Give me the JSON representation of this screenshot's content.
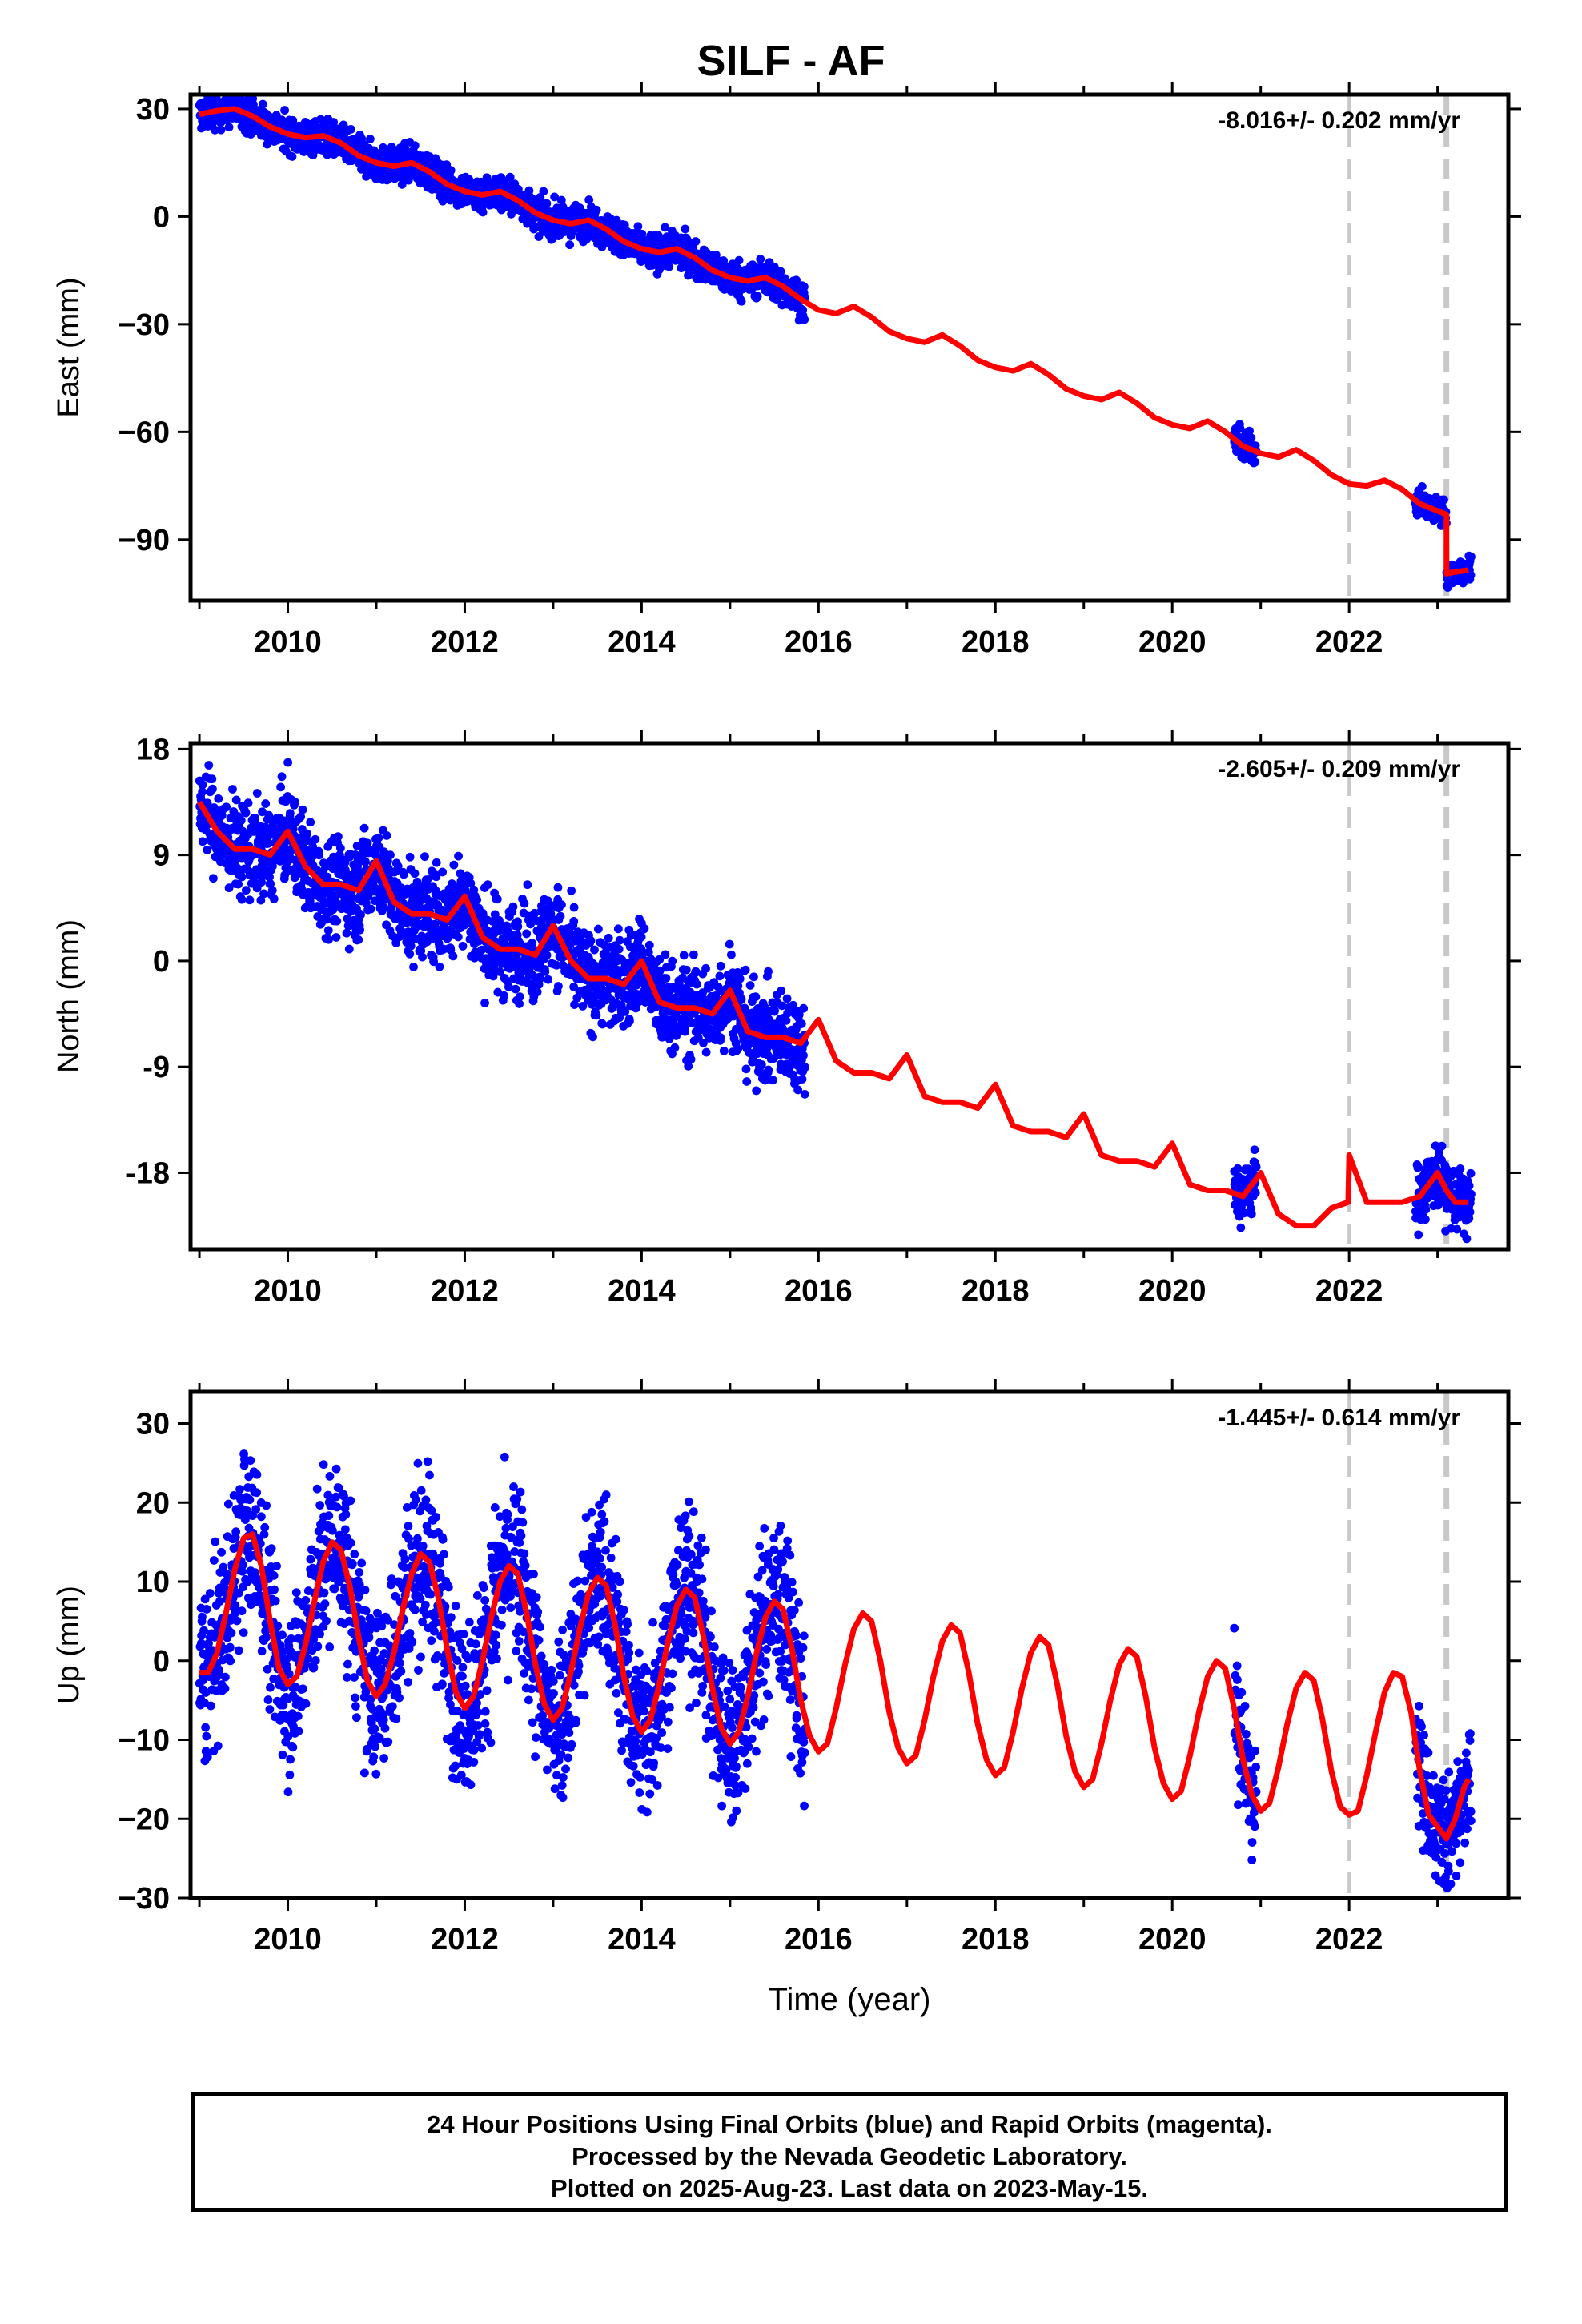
{
  "title": "SILF - AF",
  "colors": {
    "data": "#0000ff",
    "model": "#ff0000",
    "marker": "#c8c8c8",
    "frame": "#000000"
  },
  "footer": {
    "line1": "24 Hour Positions Using Final Orbits (blue) and Rapid Orbits (magenta).",
    "line2": "Processed by the Nevada Geodetic Laboratory.",
    "line3": "Plotted on 2025-Aug-23. Last data on 2023-May-15."
  },
  "chart_data": [
    {
      "type": "scatter",
      "ylabel": "East (mm)",
      "xlabel": "",
      "rate_label": "-8.016+/- 0.202 mm/yr",
      "xlim": [
        2008.9,
        2023.8
      ],
      "ylim": [
        -107,
        34
      ],
      "xticks": [
        2010,
        2012,
        2014,
        2016,
        2018,
        2020,
        2022
      ],
      "yticks": [
        -90,
        -60,
        -30,
        0,
        30
      ],
      "ytick_labels": [
        "−90",
        "−60",
        "−30",
        "0",
        "30"
      ],
      "equipment_changes": [
        2022.0,
        2023.1
      ],
      "model": {
        "x": [
          2009.0,
          2009.2,
          2009.4,
          2009.6,
          2009.8,
          2010.0,
          2010.2,
          2010.4,
          2010.6,
          2010.8,
          2011.0,
          2011.2,
          2011.4,
          2011.6,
          2011.8,
          2012.0,
          2012.2,
          2012.4,
          2012.6,
          2012.8,
          2013.0,
          2013.2,
          2013.4,
          2013.6,
          2013.8,
          2014.0,
          2014.2,
          2014.4,
          2014.6,
          2014.8,
          2015.0,
          2015.2,
          2015.4,
          2015.6,
          2015.8,
          2016.0,
          2016.2,
          2016.4,
          2016.6,
          2016.8,
          2017.0,
          2017.2,
          2017.4,
          2017.6,
          2017.8,
          2018.0,
          2018.2,
          2018.4,
          2018.6,
          2018.8,
          2019.0,
          2019.2,
          2019.4,
          2019.6,
          2019.8,
          2020.0,
          2020.2,
          2020.4,
          2020.6,
          2020.8,
          2021.0,
          2021.2,
          2021.4,
          2021.6,
          2021.8,
          2022.0,
          2022.2,
          2022.4,
          2022.6,
          2022.8,
          2023.0,
          2023.1,
          2023.101,
          2023.2,
          2023.35
        ],
        "y": [
          28.5,
          29.5,
          30.0,
          28.0,
          25.0,
          23.0,
          22.0,
          22.5,
          20.5,
          17.0,
          15.0,
          14.0,
          15.0,
          12.5,
          9.0,
          7.0,
          6.0,
          7.0,
          4.5,
          1.0,
          -1.0,
          -2.0,
          -1.0,
          -3.5,
          -7.0,
          -9.0,
          -10.0,
          -9.0,
          -11.5,
          -15.0,
          -17.0,
          -18.0,
          -17.0,
          -19.5,
          -23.0,
          -26.0,
          -27.0,
          -25.0,
          -28.0,
          -32.0,
          -34.0,
          -35.0,
          -33.0,
          -36.0,
          -40.0,
          -42.0,
          -43.0,
          -41.0,
          -44.0,
          -48.0,
          -50.0,
          -51.0,
          -49.0,
          -52.0,
          -56.0,
          -58.0,
          -59.0,
          -57.0,
          -60.0,
          -64.0,
          -66.0,
          -67.0,
          -65.0,
          -68.0,
          -72.0,
          -74.5,
          -75.0,
          -73.5,
          -76.0,
          -80.0,
          -82.0,
          -83.0,
          -99.5,
          -99.0,
          -98.5
        ]
      },
      "observations": [
        {
          "from": 2009.0,
          "to": 2015.85,
          "spread": 2.4
        },
        {
          "from": 2020.7,
          "to": 2020.95,
          "spread": 2.0
        },
        {
          "from": 2022.75,
          "to": 2023.1,
          "spread": 1.8
        },
        {
          "from": 2023.1,
          "to": 2023.38,
          "spread": 1.8
        }
      ]
    },
    {
      "type": "scatter",
      "ylabel": "North (mm)",
      "xlabel": "",
      "rate_label": "-2.605+/- 0.209 mm/yr",
      "xlim": [
        2008.9,
        2023.8
      ],
      "ylim": [
        -24.5,
        18.5
      ],
      "xticks": [
        2010,
        2012,
        2014,
        2016,
        2018,
        2020,
        2022
      ],
      "yticks": [
        -18,
        -9,
        0,
        9,
        18
      ],
      "ytick_labels": [
        "-18",
        "-9",
        "0",
        "9",
        "18"
      ],
      "equipment_changes": [
        2022.0,
        2023.1
      ],
      "model": {
        "x": [
          2009.0,
          2009.2,
          2009.4,
          2009.6,
          2009.8,
          2010.0,
          2010.2,
          2010.4,
          2010.6,
          2010.8,
          2011.0,
          2011.2,
          2011.4,
          2011.6,
          2011.8,
          2012.0,
          2012.2,
          2012.4,
          2012.6,
          2012.8,
          2013.0,
          2013.2,
          2013.4,
          2013.6,
          2013.8,
          2014.0,
          2014.2,
          2014.4,
          2014.6,
          2014.8,
          2015.0,
          2015.2,
          2015.4,
          2015.6,
          2015.8,
          2016.0,
          2016.2,
          2016.4,
          2016.6,
          2016.8,
          2017.0,
          2017.2,
          2017.4,
          2017.6,
          2017.8,
          2018.0,
          2018.2,
          2018.4,
          2018.6,
          2018.8,
          2019.0,
          2019.2,
          2019.4,
          2019.6,
          2019.8,
          2020.0,
          2020.2,
          2020.4,
          2020.6,
          2020.8,
          2021.0,
          2021.2,
          2021.4,
          2021.6,
          2021.8,
          2021.99,
          2022.0,
          2022.2,
          2022.4,
          2022.6,
          2022.8,
          2023.0,
          2023.1,
          2023.2,
          2023.35
        ],
        "y": [
          13.5,
          11.0,
          9.5,
          9.5,
          9.0,
          11.0,
          8.0,
          6.5,
          6.5,
          6.0,
          8.5,
          5.0,
          4.0,
          4.0,
          3.5,
          5.5,
          2.0,
          1.0,
          1.0,
          0.5,
          3.0,
          0.0,
          -1.5,
          -1.5,
          -2.0,
          0.0,
          -3.5,
          -4.0,
          -4.0,
          -4.5,
          -2.5,
          -6.0,
          -6.5,
          -6.5,
          -7.0,
          -5.0,
          -8.5,
          -9.5,
          -9.5,
          -10.0,
          -8.0,
          -11.5,
          -12.0,
          -12.0,
          -12.5,
          -10.5,
          -14.0,
          -14.5,
          -14.5,
          -15.0,
          -13.0,
          -16.5,
          -17.0,
          -17.0,
          -17.5,
          -15.5,
          -19.0,
          -19.5,
          -19.5,
          -20.0,
          -18.0,
          -21.5,
          -22.5,
          -22.5,
          -21.0,
          -20.5,
          -16.5,
          -20.5,
          -20.5,
          -20.5,
          -20.0,
          -18.0,
          -19.5,
          -20.5,
          -20.5
        ]
      },
      "observations": [
        {
          "from": 2009.0,
          "to": 2015.85,
          "spread": 2.0
        },
        {
          "from": 2020.7,
          "to": 2020.95,
          "spread": 1.3
        },
        {
          "from": 2022.75,
          "to": 2023.38,
          "spread": 1.4
        }
      ]
    },
    {
      "type": "scatter",
      "ylabel": "Up (mm)",
      "xlabel": "Time (year)",
      "rate_label": "-1.445+/- 0.614 mm/yr",
      "xlim": [
        2008.9,
        2023.8
      ],
      "ylim": [
        -30,
        34
      ],
      "xticks": [
        2010,
        2012,
        2014,
        2016,
        2018,
        2020,
        2022
      ],
      "yticks": [
        -30,
        -20,
        -10,
        0,
        10,
        20,
        30
      ],
      "ytick_labels": [
        "−30",
        "−20",
        "−10",
        "0",
        "10",
        "20",
        "30"
      ],
      "equipment_changes": [
        2022.0,
        2023.1
      ],
      "model": {
        "x": [
          2009.0,
          2009.1,
          2009.2,
          2009.3,
          2009.4,
          2009.5,
          2009.6,
          2009.7,
          2009.8,
          2009.9,
          2010.0,
          2010.1,
          2010.2,
          2010.3,
          2010.4,
          2010.5,
          2010.6,
          2010.7,
          2010.8,
          2010.9,
          2011.0,
          2011.1,
          2011.2,
          2011.3,
          2011.4,
          2011.5,
          2011.6,
          2011.7,
          2011.8,
          2011.9,
          2012.0,
          2012.1,
          2012.2,
          2012.3,
          2012.4,
          2012.5,
          2012.6,
          2012.7,
          2012.8,
          2012.9,
          2013.0,
          2013.1,
          2013.2,
          2013.3,
          2013.4,
          2013.5,
          2013.6,
          2013.7,
          2013.8,
          2013.9,
          2014.0,
          2014.1,
          2014.2,
          2014.3,
          2014.4,
          2014.5,
          2014.6,
          2014.7,
          2014.8,
          2014.9,
          2015.0,
          2015.1,
          2015.2,
          2015.3,
          2015.4,
          2015.5,
          2015.6,
          2015.7,
          2015.8,
          2015.9,
          2016.0,
          2016.1,
          2016.2,
          2016.3,
          2016.4,
          2016.5,
          2016.6,
          2016.7,
          2016.8,
          2016.9,
          2017.0,
          2017.1,
          2017.2,
          2017.3,
          2017.4,
          2017.5,
          2017.6,
          2017.7,
          2017.8,
          2017.9,
          2018.0,
          2018.1,
          2018.2,
          2018.3,
          2018.4,
          2018.5,
          2018.6,
          2018.7,
          2018.8,
          2018.9,
          2019.0,
          2019.1,
          2019.2,
          2019.3,
          2019.4,
          2019.5,
          2019.6,
          2019.7,
          2019.8,
          2019.9,
          2020.0,
          2020.1,
          2020.2,
          2020.3,
          2020.4,
          2020.5,
          2020.6,
          2020.7,
          2020.8,
          2020.9,
          2021.0,
          2021.1,
          2021.2,
          2021.3,
          2021.4,
          2021.5,
          2021.6,
          2021.7,
          2021.8,
          2021.9,
          2022.0,
          2022.1,
          2022.2,
          2022.3,
          2022.4,
          2022.5,
          2022.6,
          2022.7,
          2022.8,
          2022.9,
          2023.0,
          2023.1,
          2023.2,
          2023.3,
          2023.35
        ],
        "y": [
          -1.5,
          -1.5,
          1.0,
          6.0,
          11.5,
          15.5,
          16.0,
          12.0,
          5.0,
          -1.0,
          -3.0,
          -2.0,
          2.0,
          7.5,
          12.5,
          15.0,
          14.0,
          9.5,
          3.0,
          -2.5,
          -4.5,
          -3.0,
          1.0,
          6.5,
          11.0,
          13.5,
          12.5,
          8.0,
          1.5,
          -4.0,
          -6.0,
          -4.5,
          0.0,
          5.5,
          10.0,
          12.0,
          11.0,
          6.0,
          -0.5,
          -5.5,
          -7.5,
          -6.0,
          -1.5,
          4.0,
          8.5,
          10.5,
          9.5,
          4.5,
          -2.0,
          -7.0,
          -9.0,
          -7.5,
          -3.0,
          2.5,
          7.0,
          9.0,
          8.0,
          3.0,
          -3.5,
          -8.5,
          -10.5,
          -9.0,
          -4.5,
          1.0,
          5.5,
          7.5,
          6.5,
          1.5,
          -5.0,
          -9.5,
          -11.5,
          -10.5,
          -6.0,
          -0.5,
          4.0,
          6.0,
          5.0,
          0.0,
          -6.5,
          -11.0,
          -13.0,
          -12.0,
          -7.5,
          -2.0,
          2.5,
          4.5,
          3.5,
          -1.5,
          -8.0,
          -12.5,
          -14.5,
          -13.5,
          -9.0,
          -3.5,
          1.0,
          3.0,
          2.0,
          -3.0,
          -9.5,
          -14.0,
          -16.0,
          -15.0,
          -10.5,
          -5.0,
          -0.5,
          1.5,
          0.5,
          -4.5,
          -11.0,
          -15.5,
          -17.5,
          -16.5,
          -12.0,
          -6.5,
          -2.0,
          0.0,
          -1.0,
          -6.0,
          -12.5,
          -17.0,
          -19.0,
          -18.0,
          -13.5,
          -8.0,
          -3.5,
          -1.5,
          -2.5,
          -7.5,
          -14.0,
          -18.5,
          -19.5,
          -19.0,
          -14.5,
          -9.0,
          -4.0,
          -1.5,
          -2.0,
          -6.5,
          -14.0,
          -19.5,
          -21.0,
          -22.5,
          -20.0,
          -16.0,
          -15.0
        ]
      },
      "observations": [
        {
          "from": 2009.0,
          "to": 2015.85,
          "spread": 5.5
        },
        {
          "from": 2020.7,
          "to": 2020.95,
          "spread": 4.5
        },
        {
          "from": 2022.75,
          "to": 2023.38,
          "spread": 3.5
        }
      ]
    }
  ]
}
